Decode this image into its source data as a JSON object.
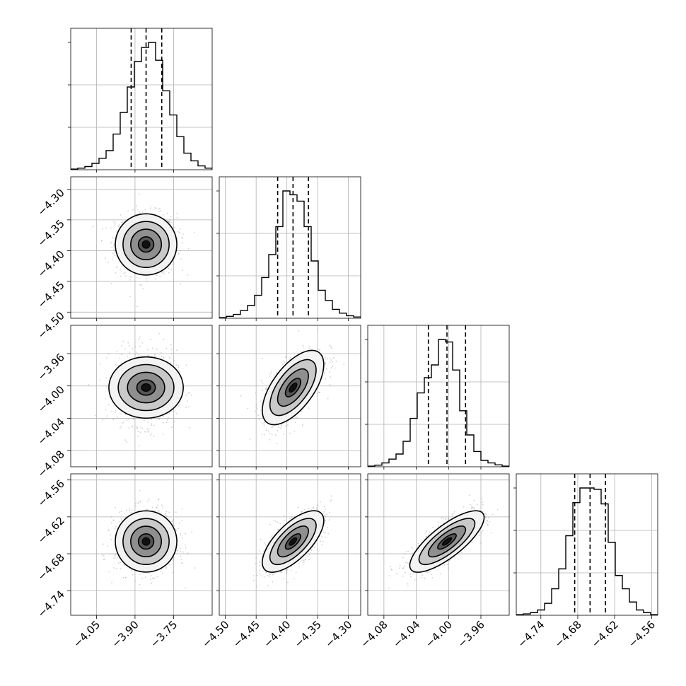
{
  "chart_data": {
    "type": "corner",
    "title": "",
    "grid": true,
    "parameters": [
      {
        "range": [
          -4.15,
          -3.6
        ],
        "ticks": [
          -4.05,
          -3.9,
          -3.75
        ],
        "tick_labels": [
          "−4.05",
          "−3.90",
          "−3.75"
        ],
        "quantiles": [
          -3.915,
          -3.857,
          -3.796
        ],
        "hist": [
          0.005,
          0.012,
          0.025,
          0.05,
          0.09,
          0.15,
          0.28,
          0.45,
          0.65,
          0.85,
          0.96,
          1.0,
          0.86,
          0.62,
          0.43,
          0.26,
          0.13,
          0.07,
          0.03,
          0.012
        ]
      },
      {
        "range": [
          -4.51,
          -4.28
        ],
        "ticks": [
          -4.5,
          -4.45,
          -4.4,
          -4.35,
          -4.3
        ],
        "tick_labels": [
          "−4.50",
          "−4.45",
          "−4.40",
          "−4.35",
          "−4.30"
        ],
        "quantiles": [
          -4.415,
          -4.39,
          -4.365
        ],
        "hist": [
          0.005,
          0.015,
          0.03,
          0.06,
          0.1,
          0.18,
          0.32,
          0.5,
          0.72,
          1.0,
          0.97,
          0.92,
          0.72,
          0.45,
          0.22,
          0.14,
          0.07,
          0.04,
          0.02,
          0.01
        ]
      },
      {
        "range": [
          -4.1,
          -3.925
        ],
        "ticks": [
          -4.08,
          -4.04,
          -4.0,
          -3.96
        ],
        "tick_labels": [
          "−4.08",
          "−4.04",
          "−4.00",
          "−3.96"
        ],
        "quantiles": [
          -4.025,
          -4.002,
          -3.979
        ],
        "hist": [
          0.005,
          0.012,
          0.03,
          0.06,
          0.1,
          0.2,
          0.38,
          0.58,
          0.7,
          0.8,
          1.0,
          0.98,
          0.76,
          0.44,
          0.25,
          0.12,
          0.05,
          0.03,
          0.015,
          0.005
        ]
      },
      {
        "range": [
          -4.78,
          -4.55
        ],
        "ticks": [
          -4.74,
          -4.68,
          -4.62,
          -4.56
        ],
        "tick_labels": [
          "−4.74",
          "−4.68",
          "−4.62",
          "−4.56"
        ],
        "quantiles": [
          -4.685,
          -4.66,
          -4.635
        ],
        "hist": [
          0.005,
          0.01,
          0.02,
          0.04,
          0.09,
          0.2,
          0.35,
          0.6,
          0.85,
          0.96,
          0.96,
          0.95,
          0.84,
          0.55,
          0.3,
          0.2,
          0.1,
          0.04,
          0.02,
          0.005
        ]
      }
    ],
    "pairs": [
      {
        "row": 1,
        "col": 0,
        "corr": 0.0
      },
      {
        "row": 2,
        "col": 0,
        "corr": 0.0
      },
      {
        "row": 2,
        "col": 1,
        "corr": 0.62
      },
      {
        "row": 3,
        "col": 0,
        "corr": 0.0
      },
      {
        "row": 3,
        "col": 1,
        "corr": 0.68
      },
      {
        "row": 3,
        "col": 2,
        "corr": 0.78
      }
    ],
    "colors": {
      "line": "#000000",
      "grid": "#b0b0b0",
      "scatter": "#9a9a9a"
    }
  }
}
